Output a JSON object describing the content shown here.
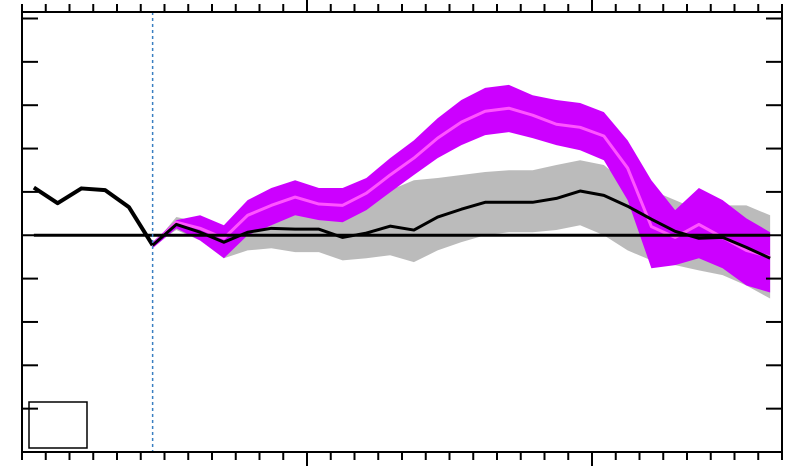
{
  "chart_data": {
    "type": "line",
    "xlim": [
      0,
      32
    ],
    "ylim": [
      -5,
      5.15
    ],
    "xticks": [
      0,
      1,
      2,
      3,
      4,
      5,
      6,
      7,
      8,
      9,
      10,
      11,
      12,
      13,
      14,
      15,
      16,
      17,
      18,
      19,
      20,
      21,
      22,
      23,
      24,
      25,
      26,
      27,
      28,
      29,
      30,
      31,
      32
    ],
    "x_major_ticks": [
      12,
      24
    ],
    "yticks": [
      -4,
      -3,
      -2,
      -1,
      0,
      1,
      2,
      3,
      4,
      5
    ],
    "hline": 0,
    "vline": 5.5,
    "bands": [
      {
        "color": "#bbbbbb",
        "x": [
          5.5,
          6.5,
          7.5,
          8.5,
          9.5,
          10.5,
          11.5,
          12.5,
          13.5,
          14.5,
          15.5,
          16.5,
          17.5,
          18.5,
          19.5,
          20.5,
          21.5,
          22.5,
          23.5,
          24.5,
          25.5,
          26.5,
          27.5,
          28.5,
          29.5,
          30.5,
          31.5
        ],
        "upper": [
          -0.23,
          0.42,
          0.3,
          0.16,
          0.46,
          0.58,
          0.62,
          0.62,
          0.58,
          0.81,
          1.04,
          1.27,
          1.32,
          1.39,
          1.46,
          1.5,
          1.5,
          1.62,
          1.73,
          1.62,
          1.16,
          1.04,
          0.81,
          0.58,
          0.69,
          0.69,
          0.46
        ],
        "lower": [
          -0.23,
          0.12,
          -0.12,
          -0.53,
          -0.35,
          -0.3,
          -0.39,
          -0.39,
          -0.58,
          -0.53,
          -0.46,
          -0.62,
          -0.35,
          -0.16,
          0,
          0.07,
          0.07,
          0.12,
          0.23,
          0,
          -0.35,
          -0.58,
          -0.69,
          -0.81,
          -0.92,
          -1.16,
          -1.46
        ]
      },
      {
        "color": "#cc00ff",
        "x": [
          5.5,
          6.5,
          7.5,
          8.5,
          9.5,
          10.5,
          11.5,
          12.5,
          13.5,
          14.5,
          15.5,
          16.5,
          17.5,
          18.5,
          19.5,
          20.5,
          21.5,
          22.5,
          23.5,
          24.5,
          25.5,
          26.5,
          27.5,
          28.5,
          29.5,
          30.5,
          31.5
        ],
        "upper": [
          -0.16,
          0.35,
          0.46,
          0.23,
          0.81,
          1.09,
          1.27,
          1.09,
          1.09,
          1.32,
          1.78,
          2.19,
          2.7,
          3.12,
          3.4,
          3.47,
          3.23,
          3.12,
          3.05,
          2.84,
          2.19,
          1.27,
          0.58,
          1.09,
          0.81,
          0.39,
          0.07
        ],
        "lower": [
          -0.3,
          0.16,
          -0.12,
          -0.53,
          0,
          0.23,
          0.46,
          0.35,
          0.3,
          0.58,
          0.99,
          1.39,
          1.78,
          2.08,
          2.31,
          2.38,
          2.24,
          2.08,
          1.96,
          1.73,
          0.81,
          -0.76,
          -0.69,
          -0.53,
          -0.76,
          -1.16,
          -1.32
        ]
      }
    ],
    "series": [
      {
        "color": "#ff55ff",
        "width": 3,
        "x": [
          5.5,
          6.5,
          7.5,
          8.5,
          9.5,
          10.5,
          11.5,
          12.5,
          13.5,
          14.5,
          15.5,
          16.5,
          17.5,
          18.5,
          19.5,
          20.5,
          21.5,
          22.5,
          23.5,
          24.5,
          25.5,
          26.5,
          27.5,
          28.5,
          29.5,
          30.5,
          31.5
        ],
        "values": [
          -0.23,
          0.3,
          0.16,
          -0.07,
          0.46,
          0.69,
          0.88,
          0.72,
          0.69,
          0.97,
          1.39,
          1.78,
          2.24,
          2.61,
          2.86,
          2.93,
          2.77,
          2.56,
          2.49,
          2.29,
          1.55,
          0.2,
          -0.05,
          0.25,
          -0.05,
          -0.35,
          -0.5
        ]
      },
      {
        "color": "#000000",
        "width": 4,
        "x": [
          0.5,
          1.5,
          2.5,
          3.5,
          4.5,
          5.5
        ],
        "values": [
          1.1,
          0.74,
          1.08,
          1.04,
          0.65,
          -0.23
        ]
      },
      {
        "color": "#000000",
        "width": 3,
        "x": [
          5.5,
          6.5,
          7.5,
          8.5,
          9.5,
          10.5,
          11.5,
          12.5,
          13.5,
          14.5,
          15.5,
          16.5,
          17.5,
          18.5,
          19.5,
          20.5,
          21.5,
          22.5,
          23.5,
          24.5,
          25.5,
          26.5,
          27.5,
          28.5,
          29.5,
          30.5,
          31.5
        ],
        "values": [
          -0.23,
          0.25,
          0.07,
          -0.16,
          0.07,
          0.16,
          0.14,
          0.14,
          -0.05,
          0.05,
          0.21,
          0.12,
          0.42,
          0.6,
          0.76,
          0.76,
          0.76,
          0.85,
          1.02,
          0.92,
          0.67,
          0.37,
          0.09,
          -0.07,
          -0.05,
          -0.28,
          -0.53
        ]
      }
    ]
  }
}
